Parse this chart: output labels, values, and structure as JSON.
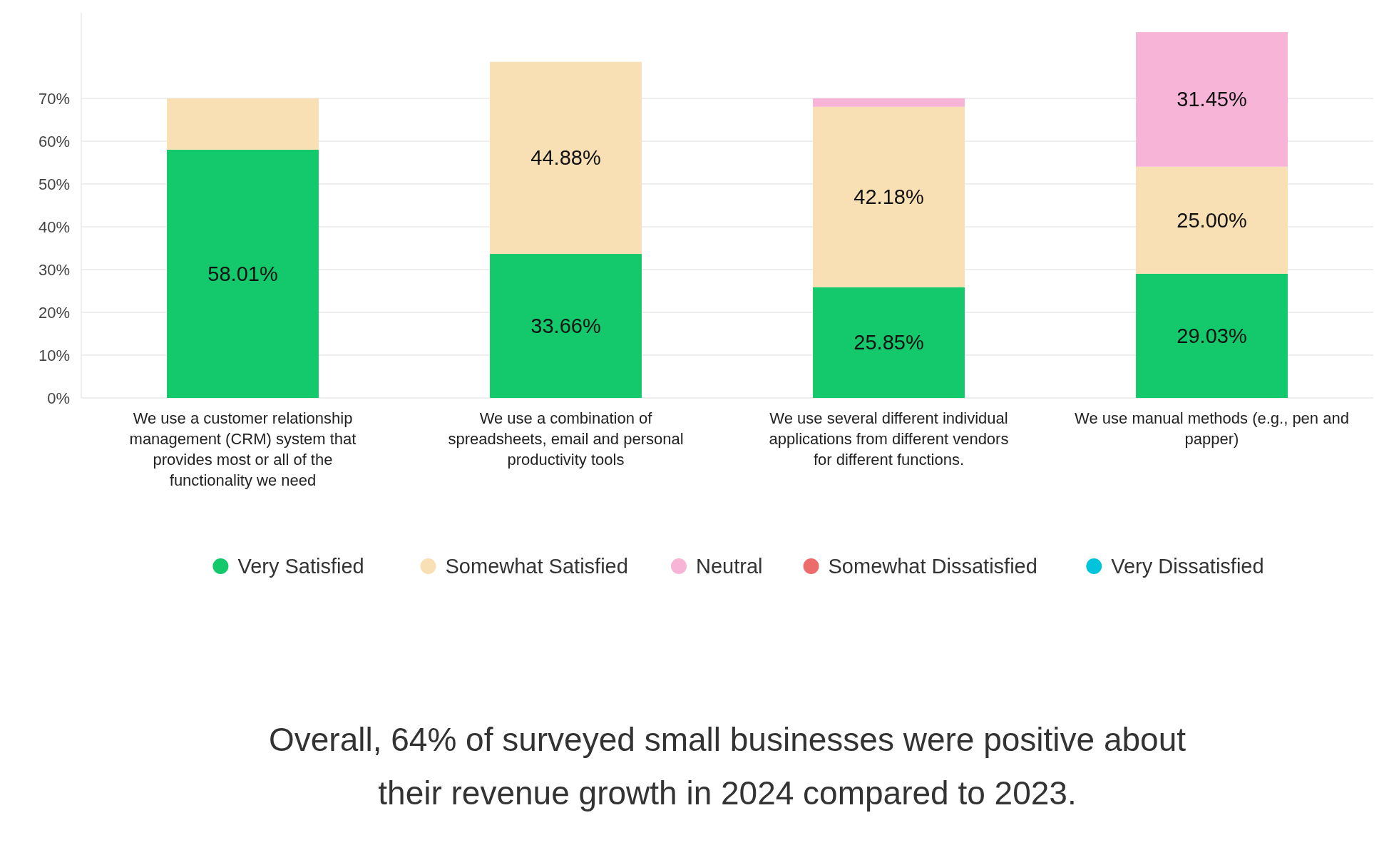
{
  "chart_data": {
    "type": "bar",
    "stacked": true,
    "categories": [
      "We use a customer relationship management (CRM) system that provides most or all of the functionality we need",
      "We use a combination of spreadsheets, email and personal productivity tools",
      "We use several different individual applications from different vendors for different functions.",
      "We use manual methods (e.g., pen and papper)"
    ],
    "series": [
      {
        "name": "Very Satisfied",
        "color": "#13c96b",
        "values": [
          58.01,
          33.66,
          25.85,
          29.03
        ],
        "value_labels": [
          "58.01%",
          "33.66%",
          "25.85%",
          "29.03%"
        ]
      },
      {
        "name": "Somewhat Satisfied",
        "color": "#f9e0b4",
        "values": [
          12,
          44.88,
          42.18,
          25.0
        ],
        "value_labels": [
          null,
          "44.88%",
          "42.18%",
          "25.00%"
        ]
      },
      {
        "name": "Neutral",
        "color": "#f8b4d6",
        "values": [
          null,
          null,
          2,
          31.45
        ],
        "value_labels": [
          null,
          null,
          null,
          "31.45%"
        ]
      },
      {
        "name": "Somewhat Dissatisfied",
        "color": "#ec6b6b",
        "values": [
          null,
          null,
          null,
          null
        ]
      },
      {
        "name": "Very Dissatisfied",
        "color": "#00c4dc",
        "values": [
          null,
          null,
          null,
          null
        ]
      }
    ],
    "ylim": [
      0,
      90
    ],
    "yticks": [
      {
        "value": 0,
        "label": "0%"
      },
      {
        "value": 10,
        "label": "10%"
      },
      {
        "value": 20,
        "label": "20%"
      },
      {
        "value": 30,
        "label": "30%"
      },
      {
        "value": 40,
        "label": "40%"
      },
      {
        "value": 50,
        "label": "50%"
      },
      {
        "value": 60,
        "label": "60%"
      },
      {
        "value": 70,
        "label": "70%"
      }
    ],
    "grid": "y",
    "legend": "bottom",
    "annotations": [
      "Overall, 64% of surveyed small businesses were positive about their revenue growth in 2024 compared to 2023."
    ]
  }
}
